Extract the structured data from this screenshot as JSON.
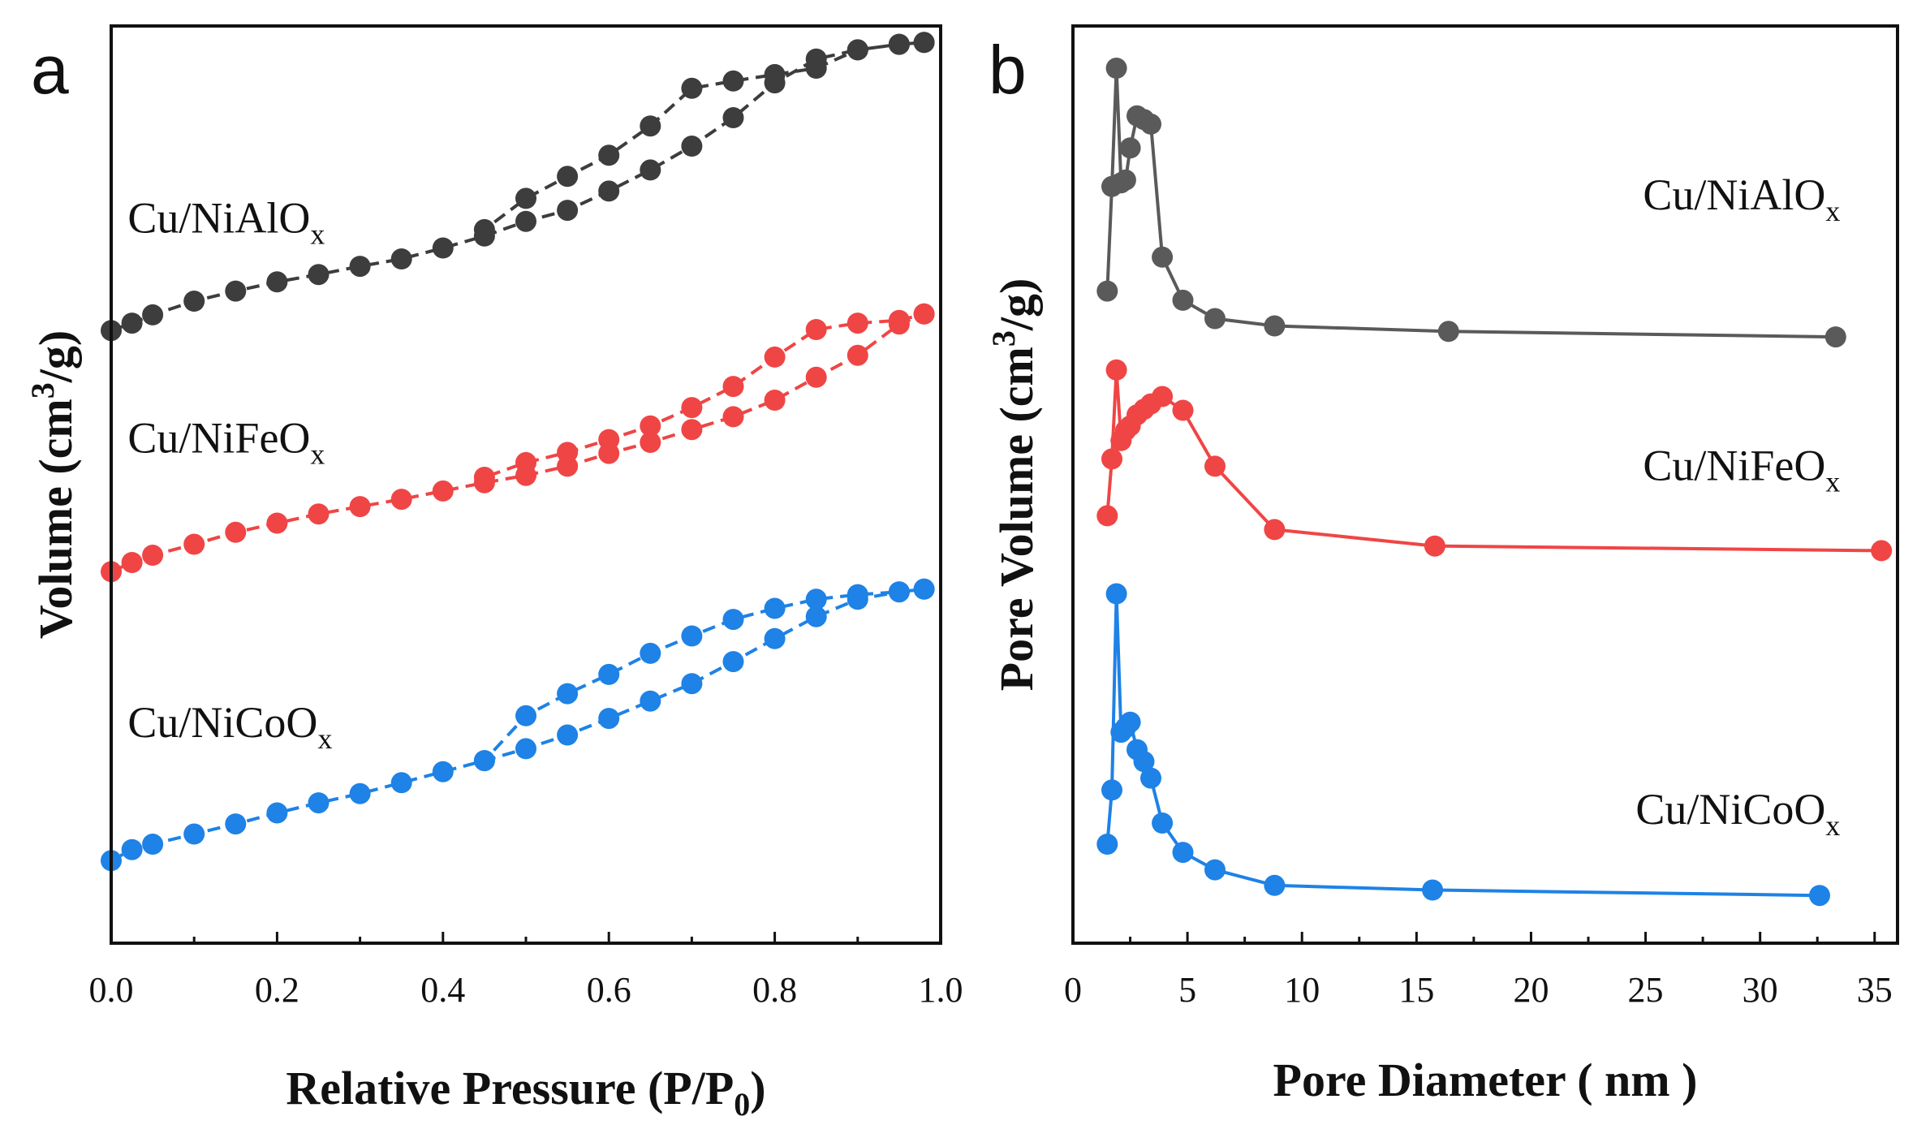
{
  "chart_data": [
    {
      "panel": "a",
      "type": "line",
      "title": "",
      "xlabel": "Relative Pressure (P/P",
      "xlabel_sub": "0",
      "xlabel_end": ")",
      "ylabel": "Volume (cm",
      "ylabel_sup": "3",
      "ylabel_end": "/g)",
      "xlim": [
        0,
        1.0
      ],
      "ylim": [
        0,
        100
      ],
      "xticks": [
        0.0,
        0.2,
        0.4,
        0.6,
        0.8,
        1.0
      ],
      "xtick_labels": [
        "0.0",
        "0.2",
        "0.4",
        "0.6",
        "0.8",
        "1.0"
      ],
      "show_y_ticks": false,
      "grid": false,
      "line_style": "dashed",
      "series": [
        {
          "name": "Cu/NiAlO",
          "name_sub": "x",
          "color": "#3d3d3d",
          "label_at": [
            0.02,
            77.5
          ],
          "x": [
            0.0,
            0.025,
            0.05,
            0.1,
            0.15,
            0.2,
            0.25,
            0.3,
            0.35,
            0.4,
            0.45,
            0.5,
            0.55,
            0.6,
            0.65,
            0.7,
            0.75,
            0.8,
            0.85,
            0.9,
            0.95,
            0.98,
            0.98,
            0.95,
            0.9,
            0.85,
            0.8,
            0.75,
            0.7,
            0.65,
            0.6,
            0.55,
            0.5,
            0.45
          ],
          "values": [
            66.8,
            67.6,
            68.5,
            70.0,
            71.1,
            72.1,
            72.9,
            73.8,
            74.6,
            75.8,
            77.1,
            78.7,
            79.9,
            82.0,
            84.3,
            86.9,
            90.0,
            93.8,
            96.4,
            97.4,
            98.0,
            98.2,
            98.2,
            98.0,
            97.4,
            95.4,
            94.7,
            94.0,
            93.2,
            89.1,
            85.9,
            83.6,
            81.2,
            77.8
          ]
        },
        {
          "name": "Cu/NiFeO",
          "name_sub": "x",
          "color": "#f04545",
          "label_at": [
            0.02,
            53.5
          ],
          "x": [
            0.0,
            0.025,
            0.05,
            0.1,
            0.15,
            0.2,
            0.25,
            0.3,
            0.35,
            0.4,
            0.45,
            0.5,
            0.55,
            0.6,
            0.65,
            0.7,
            0.75,
            0.8,
            0.85,
            0.9,
            0.95,
            0.98,
            0.98,
            0.95,
            0.9,
            0.85,
            0.8,
            0.75,
            0.7,
            0.65,
            0.6,
            0.55,
            0.5,
            0.45
          ],
          "values": [
            40.5,
            41.5,
            42.3,
            43.5,
            44.8,
            45.8,
            46.8,
            47.6,
            48.4,
            49.3,
            50.2,
            51.0,
            52.0,
            53.4,
            54.6,
            56.0,
            57.4,
            59.2,
            61.7,
            64.1,
            67.5,
            68.6,
            68.6,
            67.9,
            67.6,
            66.9,
            63.9,
            60.7,
            58.4,
            56.4,
            54.9,
            53.5,
            52.4,
            50.8
          ]
        },
        {
          "name": "Cu/NiCoO",
          "name_sub": "x",
          "color": "#1e82e6",
          "label_at": [
            0.02,
            22.5
          ],
          "x": [
            0.0,
            0.025,
            0.05,
            0.1,
            0.15,
            0.2,
            0.25,
            0.3,
            0.35,
            0.4,
            0.45,
            0.5,
            0.55,
            0.6,
            0.65,
            0.7,
            0.75,
            0.8,
            0.85,
            0.9,
            0.95,
            0.98,
            0.98,
            0.95,
            0.9,
            0.85,
            0.8,
            0.75,
            0.7,
            0.65,
            0.6,
            0.55,
            0.5,
            0.45
          ],
          "values": [
            9.0,
            10.2,
            10.8,
            11.9,
            13.0,
            14.2,
            15.3,
            16.3,
            17.5,
            18.7,
            19.9,
            21.2,
            22.7,
            24.5,
            26.4,
            28.3,
            30.7,
            33.2,
            35.6,
            37.5,
            38.3,
            38.6,
            38.6,
            38.3,
            38.0,
            37.5,
            36.5,
            35.3,
            33.5,
            31.6,
            29.3,
            27.2,
            24.8,
            19.9
          ]
        }
      ]
    },
    {
      "panel": "b",
      "type": "line",
      "title": "",
      "xlabel": "Pore Diameter ( nm )",
      "ylabel": "Pore Volume (cm",
      "ylabel_sup": "3",
      "ylabel_end": "/g)",
      "xlim": [
        0,
        36
      ],
      "ylim": [
        0,
        100
      ],
      "xticks": [
        0,
        5,
        10,
        15,
        20,
        25,
        30,
        35
      ],
      "xtick_labels": [
        "0",
        "5",
        "10",
        "15",
        "20",
        "25",
        "30",
        "35"
      ],
      "show_y_ticks": false,
      "grid": false,
      "line_style": "solid",
      "series": [
        {
          "name": "Cu/NiAlO",
          "name_sub": "x",
          "color": "#5a5a5a",
          "label_at": [
            33.5,
            80.0
          ],
          "x": [
            1.5,
            1.7,
            1.9,
            2.1,
            2.3,
            2.5,
            2.8,
            3.1,
            3.4,
            3.9,
            4.8,
            6.2,
            8.8,
            16.4,
            33.3
          ],
          "values": [
            71.1,
            82.5,
            95.4,
            82.9,
            83.2,
            86.7,
            90.2,
            89.8,
            89.3,
            74.8,
            70.1,
            68.1,
            67.3,
            66.7,
            66.1
          ]
        },
        {
          "name": "Cu/NiFeO",
          "name_sub": "x",
          "color": "#f04545",
          "label_at": [
            33.5,
            50.5
          ],
          "x": [
            1.5,
            1.7,
            1.9,
            2.1,
            2.3,
            2.5,
            2.8,
            3.1,
            3.4,
            3.9,
            4.8,
            6.2,
            8.8,
            15.8,
            35.3
          ],
          "values": [
            46.6,
            52.8,
            62.5,
            54.8,
            55.9,
            56.4,
            57.6,
            58.2,
            58.8,
            59.6,
            58.1,
            52.0,
            45.1,
            43.3,
            42.8
          ]
        },
        {
          "name": "Cu/NiCoO",
          "name_sub": "x",
          "color": "#1e82e6",
          "label_at": [
            33.5,
            13.0
          ],
          "x": [
            1.5,
            1.7,
            1.9,
            2.1,
            2.3,
            2.5,
            2.8,
            3.1,
            3.4,
            3.9,
            4.8,
            6.2,
            8.8,
            15.7,
            32.6
          ],
          "values": [
            10.8,
            16.7,
            38.1,
            23.0,
            23.5,
            24.1,
            21.1,
            19.8,
            18.0,
            13.1,
            9.9,
            8.0,
            6.3,
            5.8,
            5.2
          ]
        }
      ]
    }
  ]
}
